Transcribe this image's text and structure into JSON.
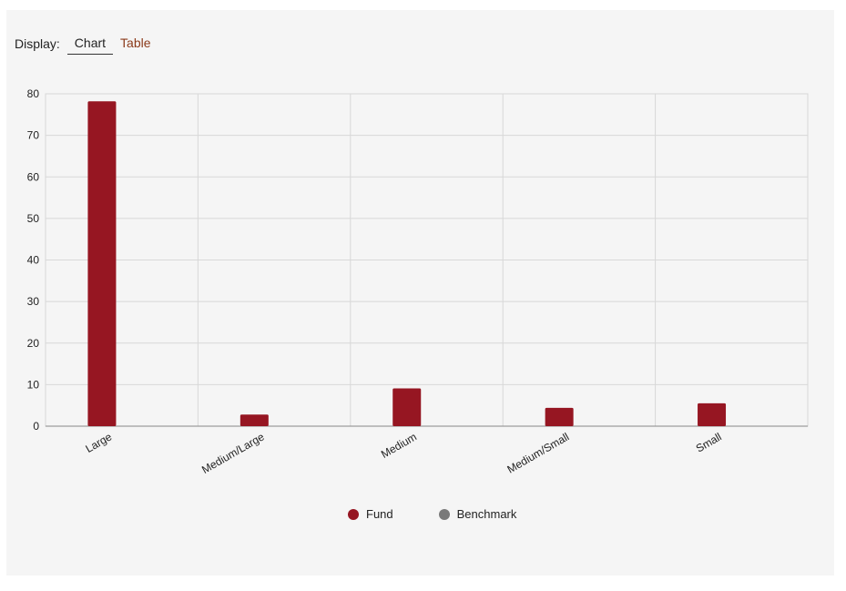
{
  "controls": {
    "display_label": "Display:",
    "tabs": [
      {
        "label": "Chart",
        "active": true
      },
      {
        "label": "Table",
        "active": false
      }
    ]
  },
  "chart_data": {
    "type": "bar",
    "categories": [
      "Large",
      "Medium/Large",
      "Medium",
      "Medium/Small",
      "Small"
    ],
    "series": [
      {
        "name": "Fund",
        "color": "#961622",
        "values": [
          78.2,
          2.8,
          9.1,
          4.4,
          5.5
        ]
      },
      {
        "name": "Benchmark",
        "color": "#7a7a7a",
        "values": [
          null,
          null,
          null,
          null,
          null
        ]
      }
    ],
    "ylim": [
      0,
      80
    ],
    "yticks": [
      0,
      10,
      20,
      30,
      40,
      50,
      60,
      70,
      80
    ],
    "grid": true,
    "legend_position": "bottom"
  }
}
